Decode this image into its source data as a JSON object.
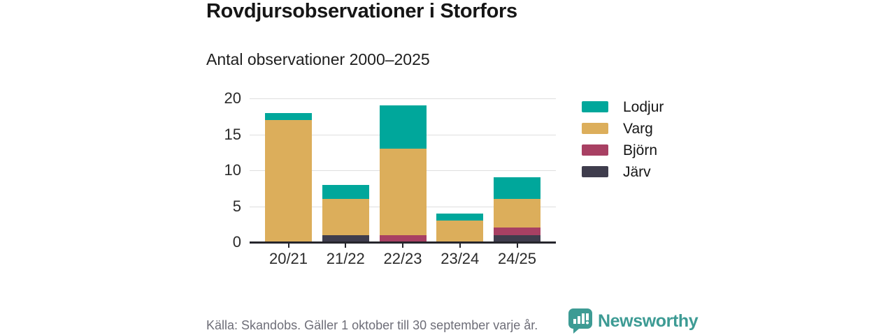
{
  "header": {
    "title": "Rovdjursobservationer i Storfors",
    "subtitle": "Antal observationer 2000–2025"
  },
  "chart_data": {
    "type": "bar",
    "stacked": true,
    "title": "Rovdjursobservationer i Storfors",
    "subtitle": "Antal observationer 2000–2025",
    "categories": [
      "20/21",
      "21/22",
      "22/23",
      "23/24",
      "24/25"
    ],
    "series": [
      {
        "name": "Lodjur",
        "color": "#00a79b",
        "values": [
          1,
          2,
          6,
          1,
          3
        ]
      },
      {
        "name": "Varg",
        "color": "#dcae5b",
        "values": [
          17,
          5,
          12,
          3,
          4
        ]
      },
      {
        "name": "Björn",
        "color": "#a84063",
        "values": [
          0,
          0,
          1,
          0,
          1
        ]
      },
      {
        "name": "Järv",
        "color": "#3f3d4d",
        "values": [
          0,
          1,
          0,
          0,
          1
        ]
      }
    ],
    "stack_order_bottom_to_top": [
      "Järv",
      "Björn",
      "Varg",
      "Lodjur"
    ],
    "totals": [
      18,
      8,
      19,
      4,
      9
    ],
    "ylim": [
      0,
      20
    ],
    "yticks": [
      0,
      5,
      10,
      15,
      20
    ],
    "grid": "horizontal",
    "legend_position": "right"
  },
  "footer": {
    "source": "Källa: Skandobs. Gäller 1 oktober till 30 september varje år.",
    "brand": "Newsworthy"
  },
  "colors": {
    "grid": "#dedede",
    "axis": "#26262c",
    "footer_text": "#6e6e78",
    "brand_teal": "#3d9b94"
  }
}
